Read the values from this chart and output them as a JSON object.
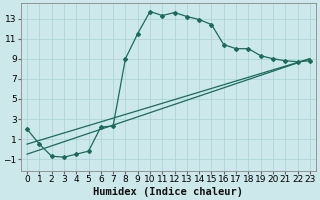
{
  "xlabel": "Humidex (Indice chaleur)",
  "background_color": "#cce8ea",
  "line_color": "#1a6b5a",
  "grid_color": "#afd4d8",
  "xlim": [
    -0.5,
    23.5
  ],
  "ylim": [
    -2.2,
    14.5
  ],
  "xticks": [
    0,
    1,
    2,
    3,
    4,
    5,
    6,
    7,
    8,
    9,
    10,
    11,
    12,
    13,
    14,
    15,
    16,
    17,
    18,
    19,
    20,
    21,
    22,
    23
  ],
  "yticks": [
    -1,
    1,
    3,
    5,
    7,
    9,
    11,
    13
  ],
  "series1_x": [
    0,
    1,
    2,
    3,
    4,
    5,
    6,
    7,
    8,
    9,
    10,
    11,
    12,
    13,
    14,
    15,
    16,
    17,
    18,
    19,
    20,
    21,
    22,
    23
  ],
  "series1_y": [
    2.0,
    0.5,
    -0.7,
    -0.8,
    -0.5,
    -0.2,
    2.2,
    2.3,
    9.0,
    11.5,
    13.7,
    13.3,
    13.6,
    13.2,
    12.9,
    12.4,
    10.4,
    10.0,
    10.0,
    9.3,
    9.0,
    8.8,
    8.7,
    8.8
  ],
  "series2_x": [
    0,
    23
  ],
  "series2_y": [
    -0.5,
    9.0
  ],
  "series3_x": [
    0,
    23
  ],
  "series3_y": [
    0.5,
    9.0
  ],
  "xlabel_fontsize": 7.5,
  "tick_fontsize": 6.5
}
